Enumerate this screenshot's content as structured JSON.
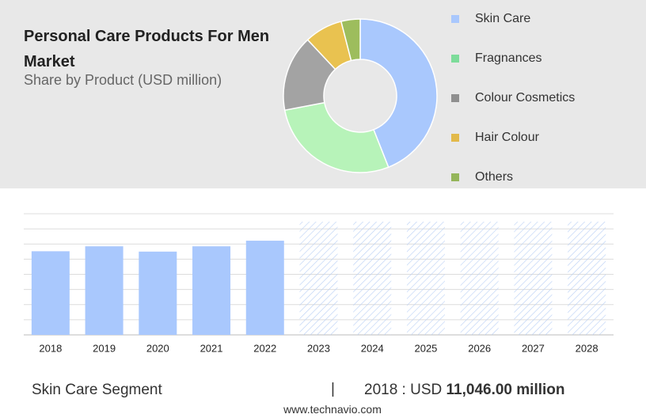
{
  "chart_data": [
    {
      "type": "pie",
      "title": "Personal Care Products For Men Market",
      "subtitle": "Share by Product (USD million)",
      "categories": [
        "Skin Care",
        "Fragnances",
        "Colour Cosmetics",
        "Hair Colour",
        "Others"
      ],
      "values": [
        44,
        28,
        16,
        8,
        4
      ],
      "colors": [
        "#a9c8fd",
        "#b7f3b9",
        "#a3a3a3",
        "#e9c250",
        "#9dbd5d"
      ],
      "legend_colors": [
        "#a9c8fd",
        "#7ddc9a",
        "#8f8f8f",
        "#e2b94a",
        "#94b55a"
      ]
    },
    {
      "type": "bar",
      "categories": [
        "2018",
        "2019",
        "2020",
        "2021",
        "2022",
        "2023",
        "2024",
        "2025",
        "2026",
        "2027",
        "2028"
      ],
      "values": [
        11046,
        11700,
        11000,
        11700,
        12440,
        null,
        null,
        null,
        null,
        null,
        null
      ],
      "color": "#a9c8fd",
      "ylim": [
        0,
        16000
      ],
      "yticks": [
        0,
        2000,
        4000,
        6000,
        8000,
        10000,
        12000,
        14000,
        16000
      ],
      "grid": true
    }
  ],
  "footer": {
    "segment": "Skin Care Segment",
    "separator": "|",
    "year_label": "2018 : USD",
    "amount": "11,046.00 million",
    "source": "www.technavio.com"
  }
}
